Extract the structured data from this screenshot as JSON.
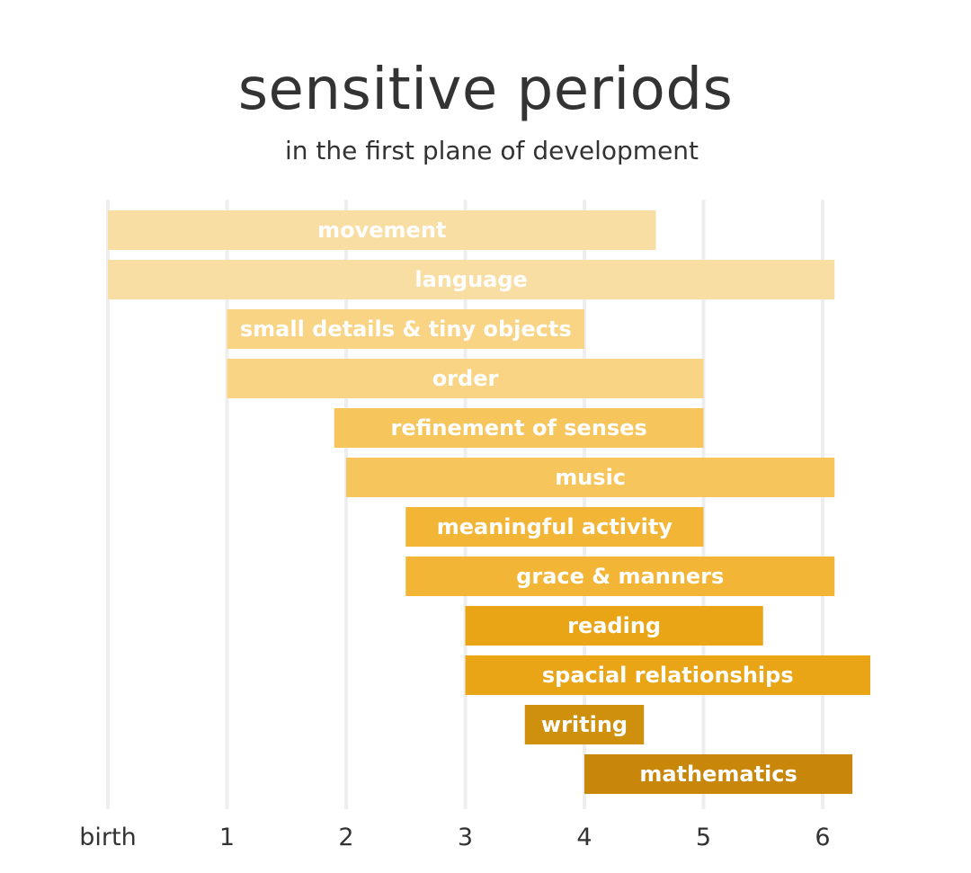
{
  "chart_data": {
    "type": "bar",
    "orientation": "horizontal-range",
    "title": "sensitive periods",
    "subtitle": "in the first plane of development",
    "x_ticks": [
      "birth",
      "1",
      "2",
      "3",
      "4",
      "5",
      "6"
    ],
    "x_tick_values": [
      0,
      1,
      2,
      3,
      4,
      5,
      6
    ],
    "xlim": [
      0,
      6.4
    ],
    "grid": true,
    "legend": "none",
    "series": [
      {
        "label": "movement",
        "start": 0,
        "end": 4.6,
        "color": "#F9DEA3"
      },
      {
        "label": "language",
        "start": 0,
        "end": 6.1,
        "color": "#F9DEA3"
      },
      {
        "label": "small details & tiny objects",
        "start": 1,
        "end": 4.0,
        "color": "#F8D484"
      },
      {
        "label": "order",
        "start": 1,
        "end": 5.0,
        "color": "#F8D484"
      },
      {
        "label": "refinement of senses",
        "start": 1.9,
        "end": 5.0,
        "color": "#F6C65D"
      },
      {
        "label": "music",
        "start": 2.0,
        "end": 6.1,
        "color": "#F6C65D"
      },
      {
        "label": "meaningful activity",
        "start": 2.5,
        "end": 5.0,
        "color": "#F3B536"
      },
      {
        "label": "grace & manners",
        "start": 2.5,
        "end": 6.1,
        "color": "#F3B536"
      },
      {
        "label": "reading",
        "start": 3.0,
        "end": 5.5,
        "color": "#E9A516"
      },
      {
        "label": "spacial relationships",
        "start": 3.0,
        "end": 6.4,
        "color": "#E9A516"
      },
      {
        "label": "writing",
        "start": 3.5,
        "end": 4.5,
        "color": "#CE900D"
      },
      {
        "label": "mathematics",
        "start": 4.0,
        "end": 6.25,
        "color": "#C8860A"
      }
    ]
  }
}
